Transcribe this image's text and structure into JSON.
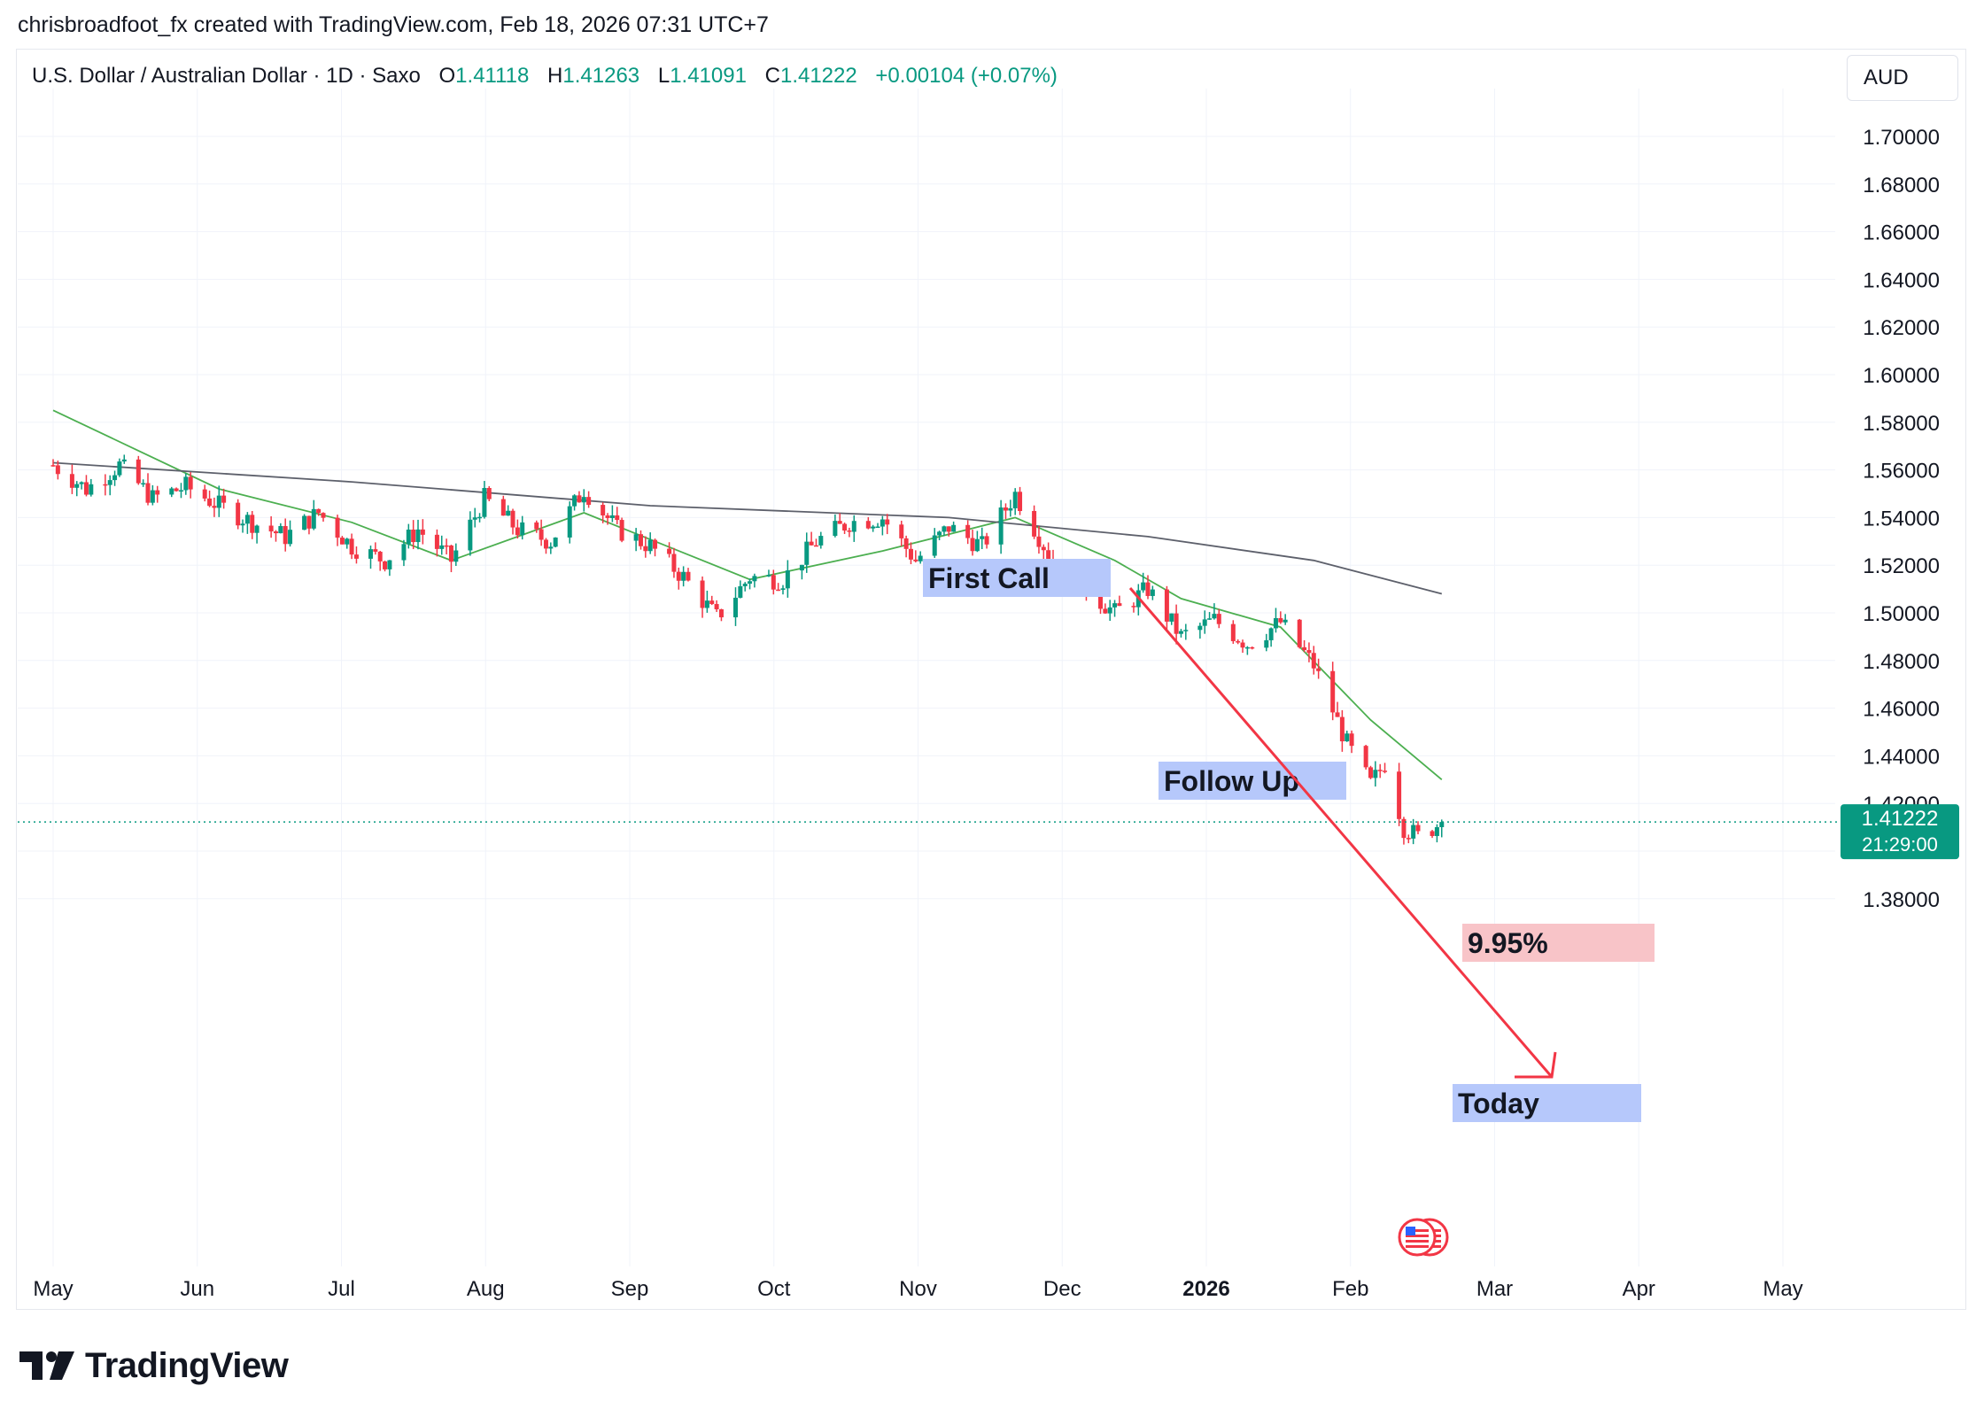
{
  "header": {
    "attribution": "chrisbroadfoot_fx created with TradingView.com, Feb 18, 2026 07:31 UTC+7"
  },
  "legend": {
    "symbol": "U.S. Dollar / Australian Dollar · 1D · Saxo",
    "open_label": "O",
    "open_value": "1.41118",
    "high_label": "H",
    "high_value": "1.41263",
    "low_label": "L",
    "low_value": "1.41091",
    "close_label": "C",
    "close_value": "1.41222",
    "change": "+0.00104 (+0.07%)"
  },
  "currency_button": {
    "label": "AUD"
  },
  "price_tag": {
    "price": "1.41222",
    "countdown": "21:29:00"
  },
  "branding": {
    "name": "TradingView"
  },
  "annotations": {
    "first_call": "First Call",
    "follow_up": "Follow Up",
    "percent_move": "9.95%",
    "today": "Today"
  },
  "colors": {
    "up": "#089981",
    "down": "#f23645",
    "ma_fast": "#4caf50",
    "ma_slow": "#5d606b",
    "arrow": "#f23645",
    "label_blue": "#b6c8fb",
    "label_red": "#f8c4c8"
  },
  "chart_data": {
    "type": "candlestick",
    "title": "",
    "interval": "1D",
    "y_axis": {
      "range": [
        1.37,
        1.72
      ],
      "ticks": [
        "1.70000",
        "1.68000",
        "1.66000",
        "1.64000",
        "1.62000",
        "1.60000",
        "1.58000",
        "1.56000",
        "1.54000",
        "1.52000",
        "1.50000",
        "1.48000",
        "1.46000",
        "1.44000",
        "1.42000",
        "1.40000",
        "1.38000"
      ]
    },
    "x_axis": {
      "ticks": [
        "May",
        "Jun",
        "Jul",
        "Aug",
        "Sep",
        "Oct",
        "Nov",
        "Dec",
        "2026",
        "Feb",
        "Mar",
        "Apr",
        "May"
      ]
    },
    "current_price": 1.41222,
    "price_path": [
      [
        "2025-05-01",
        1.562
      ],
      [
        "2025-05-08",
        1.552
      ],
      [
        "2025-05-15",
        1.562
      ],
      [
        "2025-05-22",
        1.548
      ],
      [
        "2025-05-29",
        1.553
      ],
      [
        "2025-06-05",
        1.545
      ],
      [
        "2025-06-12",
        1.538
      ],
      [
        "2025-06-19",
        1.532
      ],
      [
        "2025-06-26",
        1.542
      ],
      [
        "2025-07-03",
        1.528
      ],
      [
        "2025-07-10",
        1.522
      ],
      [
        "2025-07-17",
        1.535
      ],
      [
        "2025-07-24",
        1.522
      ],
      [
        "2025-07-31",
        1.548
      ],
      [
        "2025-08-07",
        1.535
      ],
      [
        "2025-08-14",
        1.53
      ],
      [
        "2025-08-21",
        1.552
      ],
      [
        "2025-08-28",
        1.535
      ],
      [
        "2025-09-04",
        1.528
      ],
      [
        "2025-09-11",
        1.515
      ],
      [
        "2025-09-18",
        1.498
      ],
      [
        "2025-09-25",
        1.515
      ],
      [
        "2025-10-02",
        1.514
      ],
      [
        "2025-10-09",
        1.53
      ],
      [
        "2025-10-16",
        1.538
      ],
      [
        "2025-10-23",
        1.54
      ],
      [
        "2025-10-30",
        1.522
      ],
      [
        "2025-11-06",
        1.536
      ],
      [
        "2025-11-13",
        1.528
      ],
      [
        "2025-11-20",
        1.55
      ],
      [
        "2025-11-27",
        1.525
      ],
      [
        "2025-12-04",
        1.512
      ],
      [
        "2025-12-11",
        1.5
      ],
      [
        "2025-12-18",
        1.51
      ],
      [
        "2025-12-25",
        1.49
      ],
      [
        "2026-01-01",
        1.497
      ],
      [
        "2026-01-08",
        1.487
      ],
      [
        "2026-01-15",
        1.496
      ],
      [
        "2026-01-22",
        1.478
      ],
      [
        "2026-01-29",
        1.445
      ],
      [
        "2026-02-03",
        1.428
      ],
      [
        "2026-02-06",
        1.437
      ],
      [
        "2026-02-10",
        1.41
      ],
      [
        "2026-02-13",
        1.406
      ],
      [
        "2026-02-18",
        1.4122
      ]
    ],
    "series": [
      {
        "name": "",
        "type": "moving-average",
        "points": [
          [
            "2025-05-01",
            1.585
          ],
          [
            "2025-06-05",
            1.552
          ],
          [
            "2025-07-03",
            1.538
          ],
          [
            "2025-07-24",
            1.522
          ],
          [
            "2025-08-21",
            1.542
          ],
          [
            "2025-09-25",
            1.514
          ],
          [
            "2025-10-23",
            1.526
          ],
          [
            "2025-11-20",
            1.54
          ],
          [
            "2025-12-11",
            1.522
          ],
          [
            "2025-12-25",
            1.506
          ],
          [
            "2026-01-15",
            1.494
          ],
          [
            "2026-02-03",
            1.455
          ],
          [
            "2026-02-18",
            1.43
          ]
        ]
      },
      {
        "name": "",
        "type": "moving-average",
        "points": [
          [
            "2025-05-01",
            1.563
          ],
          [
            "2025-07-03",
            1.555
          ],
          [
            "2025-09-04",
            1.545
          ],
          [
            "2025-11-06",
            1.54
          ],
          [
            "2025-12-18",
            1.532
          ],
          [
            "2026-01-22",
            1.522
          ],
          [
            "2026-02-18",
            1.508
          ]
        ]
      }
    ]
  }
}
